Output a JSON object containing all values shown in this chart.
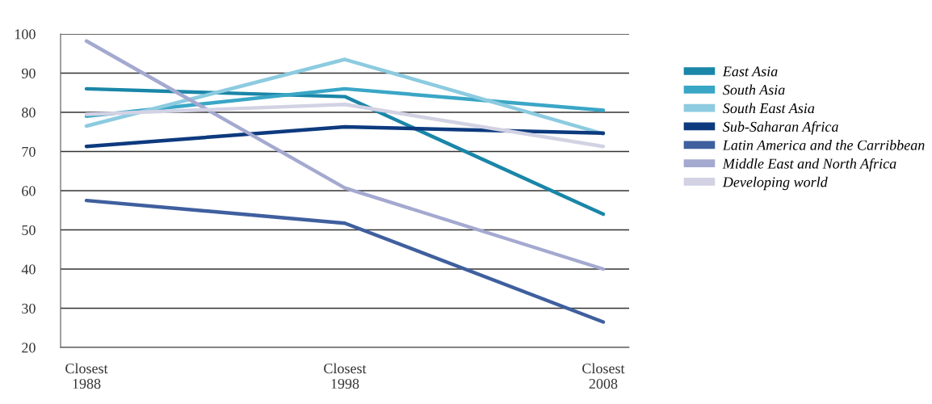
{
  "chart_data": {
    "type": "line",
    "categories": [
      "Closest\n1988",
      "Closest\n1998",
      "Closest\n2008"
    ],
    "series": [
      {
        "name": "East Asia",
        "color": "#1a86a8",
        "values": [
          86,
          84,
          54
        ]
      },
      {
        "name": "South Asia",
        "color": "#3aa6c6",
        "values": [
          79,
          86,
          80.5
        ]
      },
      {
        "name": "South East Asia",
        "color": "#8ccbe0",
        "values": [
          76.5,
          93.5,
          74.5
        ]
      },
      {
        "name": "Sub-Saharan Africa",
        "color": "#0d3a7e",
        "values": [
          71.3,
          76.3,
          74.7
        ]
      },
      {
        "name": "Latin America and the Carribbean",
        "color": "#3f5f9e",
        "values": [
          57.5,
          51.7,
          26.5
        ]
      },
      {
        "name": "Middle East and North Africa",
        "color": "#a4a9d0",
        "values": [
          98.2,
          60.7,
          40
        ]
      },
      {
        "name": "Developing world",
        "color": "#d2d2e4",
        "values": [
          79.5,
          82,
          71.3
        ]
      }
    ],
    "ylim": [
      20,
      100
    ],
    "yticks": [
      20,
      30,
      40,
      50,
      60,
      70,
      80,
      90,
      100
    ],
    "grid": "y",
    "legend": "right",
    "marker": "none",
    "line_style": "solid"
  }
}
